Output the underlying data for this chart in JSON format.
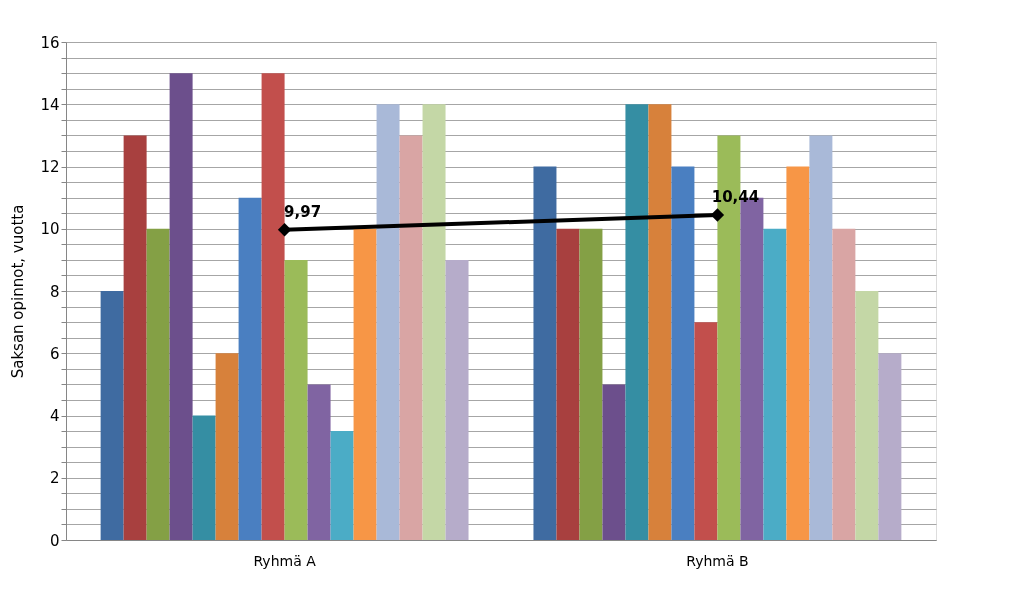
{
  "chart_data": {
    "type": "bar",
    "ylabel": "Saksan opinnot, vuotta",
    "categories": [
      "Ryhmä A",
      "Ryhmä B"
    ],
    "series": [
      {
        "color": "#3f6ba1",
        "values": [
          8,
          12
        ]
      },
      {
        "color": "#a8403f",
        "values": [
          13,
          10
        ]
      },
      {
        "color": "#84a045",
        "values": [
          10,
          10
        ]
      },
      {
        "color": "#6c4f8c",
        "values": [
          15,
          5
        ]
      },
      {
        "color": "#358ea3",
        "values": [
          4,
          14
        ]
      },
      {
        "color": "#d7813b",
        "values": [
          6,
          14
        ]
      },
      {
        "color": "#4a7fc1",
        "values": [
          11,
          12
        ]
      },
      {
        "color": "#c24f4c",
        "values": [
          15,
          7
        ]
      },
      {
        "color": "#9bbb59",
        "values": [
          9,
          13
        ]
      },
      {
        "color": "#8064a2",
        "values": [
          5,
          11
        ]
      },
      {
        "color": "#4bacc6",
        "values": [
          3.5,
          10
        ]
      },
      {
        "color": "#f79646",
        "values": [
          10,
          12
        ]
      },
      {
        "color": "#a9b9d8",
        "values": [
          14,
          13
        ]
      },
      {
        "color": "#d9a5a4",
        "values": [
          13,
          10
        ]
      },
      {
        "color": "#c4d7a6",
        "values": [
          14,
          8
        ]
      },
      {
        "color": "#b6acca",
        "values": [
          9,
          6
        ]
      },
      {
        "type": "line",
        "color": "#000000",
        "values": [
          9.97,
          10.44
        ],
        "value_labels": [
          "9,97",
          "10,44"
        ]
      }
    ],
    "marker": "diamond",
    "ylim": [
      0,
      16
    ],
    "yticks": [
      0,
      {
        "value": 0.5,
        "label": null
      },
      {
        "value": 1,
        "label": null
      },
      {
        "value": 1.5,
        "label": null
      },
      2,
      {
        "value": 2.5,
        "label": null
      },
      {
        "value": 3,
        "label": null
      },
      {
        "value": 3.5,
        "label": null
      },
      4,
      {
        "value": 4.5,
        "label": null
      },
      {
        "value": 5,
        "label": null
      },
      {
        "value": 5.5,
        "label": null
      },
      6,
      {
        "value": 6.5,
        "label": null
      },
      {
        "value": 7,
        "label": null
      },
      {
        "value": 7.5,
        "label": null
      },
      8,
      {
        "value": 8.5,
        "label": null
      },
      {
        "value": 9,
        "label": null
      },
      {
        "value": 9.5,
        "label": null
      },
      10,
      {
        "value": 10.5,
        "label": null
      },
      {
        "value": 11,
        "label": null
      },
      {
        "value": 11.5,
        "label": null
      },
      12,
      {
        "value": 12.5,
        "label": null
      },
      {
        "value": 13,
        "label": null
      },
      {
        "value": 13.5,
        "label": null
      },
      14,
      {
        "value": 14.5,
        "label": null
      },
      {
        "value": 15,
        "label": null
      },
      {
        "value": 15.5,
        "label": null
      },
      16
    ],
    "grid": true,
    "legend": false
  }
}
